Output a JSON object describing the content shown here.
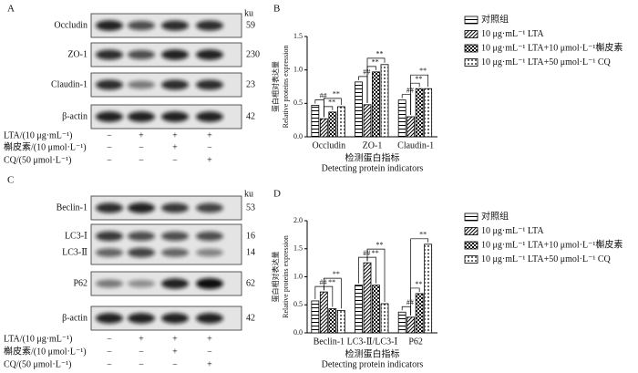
{
  "panel_labels": [
    "A",
    "B",
    "C",
    "D"
  ],
  "blots": [
    {
      "unit": "ku",
      "rows": [
        {
          "name": "Occludin",
          "size": 59
        },
        {
          "name": "ZO-1",
          "size": 230
        },
        {
          "name": "Claudin-1",
          "size": 23
        },
        {
          "name": "β-actin",
          "size": 42
        }
      ],
      "treatments": [
        {
          "label": "LTA/(10 μg·mL⁻¹)",
          "signs": [
            "−",
            "+",
            "+",
            "+"
          ]
        },
        {
          "label": "槲皮素/(10 μmol·L⁻¹)",
          "signs": [
            "−",
            "−",
            "+",
            "−"
          ]
        },
        {
          "label": "CQ/(50 μmol·L⁻¹)",
          "signs": [
            "−",
            "−",
            "−",
            "+"
          ]
        }
      ]
    },
    {
      "unit": "ku",
      "rows": [
        {
          "name": "Beclin-1",
          "size": 53
        },
        {
          "name": "LC3-Ⅰ",
          "size": 16
        },
        {
          "name": "LC3-Ⅱ",
          "size": 14
        },
        {
          "name": "P62",
          "size": 62
        },
        {
          "name": "β-actin",
          "size": 42
        }
      ],
      "treatments": [
        {
          "label": "LTA/(10 μg·mL⁻¹)",
          "signs": [
            "−",
            "+",
            "+",
            "+"
          ]
        },
        {
          "label": "槲皮素/(10 μmol·L⁻¹)",
          "signs": [
            "−",
            "−",
            "+",
            "−"
          ]
        },
        {
          "label": "CQ/(50 μmol·L⁻¹)",
          "signs": [
            "−",
            "−",
            "−",
            "+"
          ]
        }
      ]
    }
  ],
  "chart_data": [
    {
      "type": "bar",
      "y_label": [
        "蛋白相对表达量",
        "Relative proteins expression"
      ],
      "x_label": [
        "检测蛋白指标",
        "Detecting protein indicators"
      ],
      "categories": [
        "Occludin",
        "ZO-1",
        "Claudin-1"
      ],
      "series": [
        {
          "name": "对照组",
          "color": "#000000",
          "pattern": "hlines",
          "values": [
            0.47,
            0.82,
            0.55
          ]
        },
        {
          "name": "10 μg·mL⁻¹ LTA",
          "color": "#000000",
          "pattern": "diag",
          "values": [
            0.27,
            0.48,
            0.3
          ]
        },
        {
          "name": "10 μg·mL⁻¹ LTA+10 μmol·L⁻¹槲皮素",
          "color": "#000000",
          "pattern": "checker",
          "values": [
            0.37,
            0.97,
            0.72
          ]
        },
        {
          "name": "10 μg·mL⁻¹ LTA+50 μmol·L⁻¹ CQ",
          "color": "#000000",
          "pattern": "dots",
          "values": [
            0.45,
            1.08,
            0.72
          ]
        }
      ],
      "annotations": [
        [
          "##",
          "**",
          "**"
        ],
        [
          "##",
          "**",
          "**"
        ],
        [
          "##",
          "**",
          "**"
        ]
      ],
      "ylim": [
        0,
        1.5
      ],
      "yticks": [
        {
          "value": 0,
          "label": "0.0"
        },
        0.5,
        {
          "value": 1,
          "label": "1.0"
        },
        1.5
      ]
    },
    {
      "type": "bar",
      "y_label": [
        "蛋白相对表达量",
        "Relative proteins expression"
      ],
      "x_label": [
        "检测蛋白指标",
        "Detecting protein indicators"
      ],
      "categories": [
        "Beclin-1",
        "LC3-Ⅱ/LC3-Ⅰ",
        "P62"
      ],
      "series": [
        {
          "name": "对照组",
          "color": "#000000",
          "pattern": "hlines",
          "values": [
            0.57,
            0.85,
            0.37
          ]
        },
        {
          "name": "10 μg·mL⁻¹ LTA",
          "color": "#000000",
          "pattern": "diag",
          "values": [
            0.73,
            1.25,
            0.28
          ]
        },
        {
          "name": "10 μg·mL⁻¹ LTA+10 μmol·L⁻¹槲皮素",
          "color": "#000000",
          "pattern": "checker",
          "values": [
            0.43,
            0.85,
            0.7
          ]
        },
        {
          "name": "10 μg·mL⁻¹ LTA+50 μmol·L⁻¹ CQ",
          "color": "#000000",
          "pattern": "dots",
          "values": [
            0.4,
            0.52,
            1.58
          ]
        }
      ],
      "annotations": [
        [
          "##",
          "**",
          "**"
        ],
        [
          "##",
          "**",
          "**"
        ],
        [
          "##",
          "**",
          "**"
        ]
      ],
      "ylim": [
        0,
        2
      ],
      "yticks": [
        {
          "value": 0,
          "label": "0.0"
        },
        0.5,
        {
          "value": 1,
          "label": "1.0"
        },
        1.5,
        {
          "value": 2,
          "label": "2.0"
        }
      ]
    }
  ]
}
